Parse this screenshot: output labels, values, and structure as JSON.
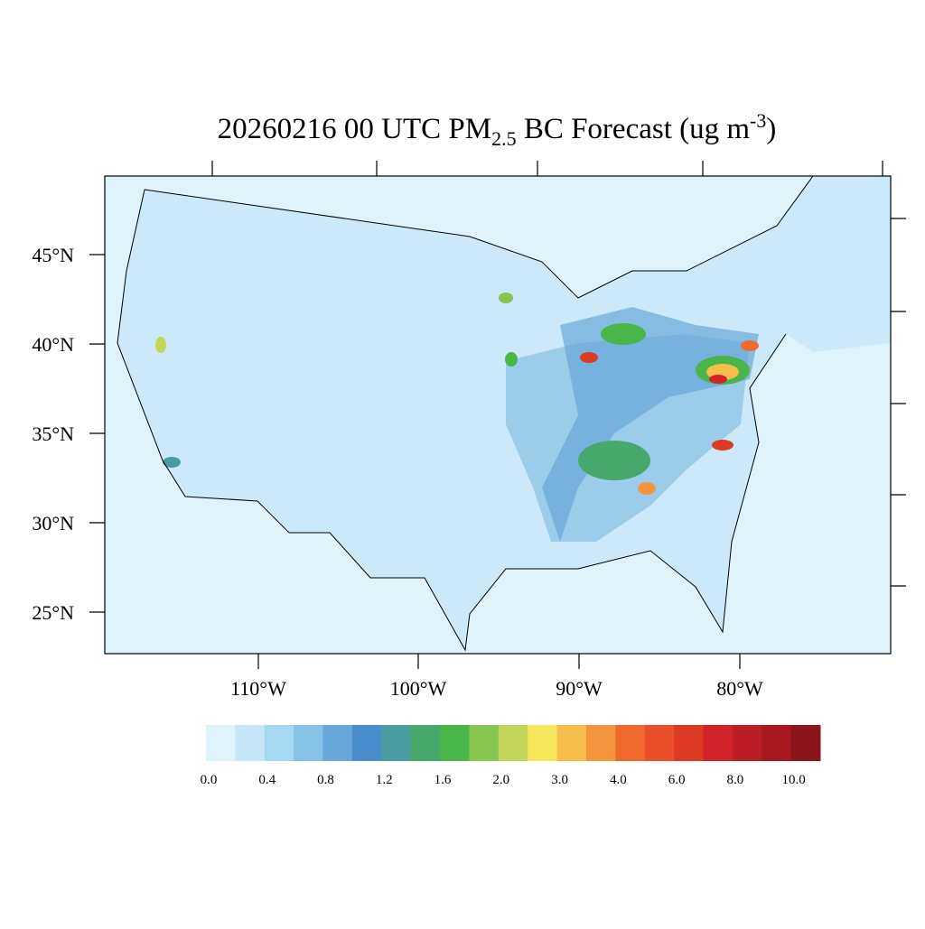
{
  "title": {
    "prefix": "20260216 00 UTC PM",
    "subscript": "2.5",
    "middle": " BC Forecast (ug m",
    "superscript": "-3",
    "suffix": ")"
  },
  "latitude_labels": [
    "45°N",
    "40°N",
    "35°N",
    "30°N",
    "25°N"
  ],
  "longitude_labels": [
    "110°W",
    "100°W",
    "90°W",
    "80°W"
  ],
  "colorbar": {
    "colors": [
      "#e0f3fb",
      "#c6e6f7",
      "#a5d8f3",
      "#86c1e6",
      "#68a7d9",
      "#4a8dcc",
      "#4a9ca0",
      "#48a86c",
      "#4ab548",
      "#86c550",
      "#c4d65a",
      "#f6e65c",
      "#f7bd4a",
      "#f4953e",
      "#f06a2d",
      "#e84f2a",
      "#dd3a26",
      "#d2222a",
      "#bd1d25",
      "#a8181f",
      "#8b1518"
    ],
    "labels": [
      "0.0",
      "0.4",
      "0.8",
      "1.2",
      "1.6",
      "2.0",
      "3.0",
      "4.0",
      "6.0",
      "8.0",
      "10.0"
    ]
  }
}
